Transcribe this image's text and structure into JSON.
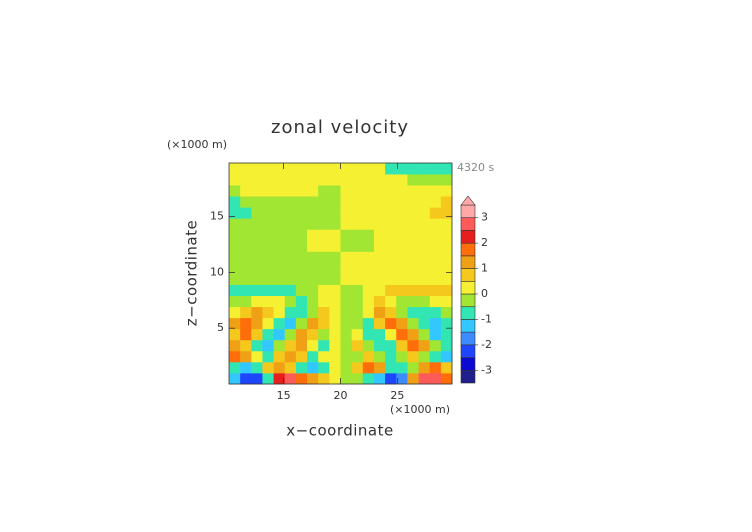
{
  "chart_data": {
    "type": "contourf",
    "title": "zonal velocity",
    "x_unit": "(×1000 m)",
    "y_unit": "(×1000 m)",
    "time_label": "4320 s",
    "xlabel": "x−coordinate",
    "ylabel": "z−coordinate",
    "xlim": [
      10.2,
      29.8
    ],
    "ylim": [
      0,
      19.8
    ],
    "xticks": [
      15,
      20,
      25
    ],
    "yticks": [
      5,
      10,
      15
    ],
    "levels": [
      -3,
      -2.5,
      -2,
      -1.5,
      -1,
      -0.5,
      0,
      0.5,
      1,
      1.5,
      2,
      2.5,
      3
    ],
    "colors": [
      "#1e1e8c",
      "#0a0ad2",
      "#1e46ff",
      "#3c8cff",
      "#32c8ff",
      "#32e6b4",
      "#a0e632",
      "#f5f032",
      "#f5c81e",
      "#f0a014",
      "#ff6e0a",
      "#e61e1e",
      "#ff5a5a",
      "#ffa8a8"
    ],
    "colorbar_lim": [
      -3.5,
      3.5
    ],
    "colorbar_ticks": [
      -3,
      -2,
      -1,
      0,
      1,
      2,
      3
    ],
    "z": [
      [
        -1.5,
        -2.5,
        -2.5,
        -1,
        2,
        2.5,
        1.5,
        1,
        0.5,
        0.25,
        -0.25,
        -0.5,
        -1,
        -1.5,
        -2.5,
        -2,
        1,
        2.5,
        2.5,
        1.5
      ],
      [
        -0.75,
        -1.5,
        -1,
        0.5,
        1,
        0.75,
        -1,
        -1.5,
        -0.75,
        0.25,
        -0.25,
        0.75,
        1.5,
        1,
        -0.75,
        -1,
        -0.5,
        1,
        1.5,
        0.75
      ],
      [
        1.5,
        1,
        0.25,
        -0.75,
        0.5,
        1,
        0.5,
        -0.75,
        0.25,
        0.25,
        -0.25,
        -0.25,
        0.75,
        -0.5,
        -1,
        -0.5,
        0.75,
        -0.25,
        -1,
        -1.5
      ],
      [
        1,
        0.5,
        -1,
        -1.5,
        -0.5,
        0.75,
        1,
        0.25,
        -0.75,
        0.25,
        -0.25,
        0.75,
        -0.25,
        -1,
        -0.75,
        0.5,
        1.5,
        1,
        -0.5,
        -1
      ],
      [
        0.75,
        1.5,
        0.5,
        -1,
        -1.5,
        -0.25,
        1,
        0.75,
        -0.25,
        0.25,
        -0.25,
        0.25,
        -0.75,
        -1,
        0.25,
        1.5,
        1,
        -0.5,
        -1.5,
        -0.75
      ],
      [
        1,
        1.5,
        1,
        0.25,
        -1,
        -1.5,
        -0.5,
        1,
        0.5,
        0.25,
        -0.25,
        -0.5,
        -1,
        0.5,
        1.5,
        1,
        -0.25,
        -1,
        -1.5,
        -1
      ],
      [
        0.25,
        0.75,
        1,
        0.75,
        0.25,
        -0.75,
        -1,
        -0.25,
        0.5,
        0.25,
        -0.25,
        -0.5,
        0.25,
        1,
        0.75,
        -0.25,
        -0.75,
        -1,
        -0.75,
        -0.25
      ],
      [
        -0.25,
        -0.25,
        0.25,
        0.25,
        0.25,
        -0.25,
        -0.75,
        -0.25,
        0.25,
        0.25,
        -0.25,
        -0.25,
        0.25,
        0.75,
        0.25,
        -0.25,
        -0.25,
        -0.25,
        0.25,
        0.25
      ],
      [
        -0.75,
        -0.75,
        -0.75,
        -0.75,
        -0.75,
        -0.75,
        -0.25,
        -0.25,
        0.25,
        0.25,
        -0.25,
        -0.25,
        0.25,
        0.25,
        0.75,
        0.75,
        0.75,
        0.75,
        0.75,
        0.75
      ],
      [
        -0.25,
        -0.25,
        -0.25,
        -0.25,
        -0.25,
        -0.25,
        -0.25,
        -0.25,
        -0.25,
        -0.25,
        0.25,
        0.25,
        0.25,
        0.25,
        0.25,
        0.25,
        0.25,
        0.25,
        0.25,
        0.25
      ],
      [
        -0.25,
        -0.25,
        -0.25,
        -0.25,
        -0.25,
        -0.25,
        -0.25,
        -0.25,
        -0.25,
        -0.25,
        0.25,
        0.25,
        0.25,
        0.25,
        0.25,
        0.25,
        0.25,
        0.25,
        0.25,
        0.25
      ],
      [
        -0.25,
        -0.25,
        -0.25,
        -0.25,
        -0.25,
        -0.25,
        -0.25,
        -0.25,
        -0.25,
        -0.25,
        0.25,
        0.25,
        0.25,
        0.25,
        0.25,
        0.25,
        0.25,
        0.25,
        0.25,
        0.25
      ],
      [
        -0.25,
        -0.25,
        -0.25,
        -0.25,
        -0.25,
        -0.25,
        -0.25,
        0.25,
        0.25,
        0.25,
        -0.25,
        -0.25,
        -0.25,
        0.25,
        0.25,
        0.25,
        0.25,
        0.25,
        0.25,
        0.25
      ],
      [
        -0.25,
        -0.25,
        -0.25,
        -0.25,
        -0.25,
        -0.25,
        -0.25,
        0.25,
        0.25,
        0.25,
        -0.25,
        -0.25,
        -0.25,
        0.25,
        0.25,
        0.25,
        0.25,
        0.25,
        0.25,
        0.25
      ],
      [
        -0.25,
        -0.25,
        -0.25,
        -0.25,
        -0.25,
        -0.25,
        -0.25,
        -0.25,
        -0.25,
        -0.25,
        0.25,
        0.25,
        0.25,
        0.25,
        0.25,
        0.25,
        0.25,
        0.25,
        0.25,
        0.25
      ],
      [
        -0.75,
        -0.75,
        -0.25,
        -0.25,
        -0.25,
        -0.25,
        -0.25,
        -0.25,
        -0.25,
        -0.25,
        0.25,
        0.25,
        0.25,
        0.25,
        0.25,
        0.25,
        0.25,
        0.25,
        0.75,
        0.75
      ],
      [
        -0.75,
        -0.25,
        -0.25,
        -0.25,
        -0.25,
        -0.25,
        -0.25,
        -0.25,
        -0.25,
        -0.25,
        0.25,
        0.25,
        0.25,
        0.25,
        0.25,
        0.25,
        0.25,
        0.25,
        0.25,
        0.75
      ],
      [
        -0.25,
        0.25,
        0.25,
        0.25,
        0.25,
        0.25,
        0.25,
        0.25,
        -0.25,
        -0.25,
        0.25,
        0.25,
        0.25,
        0.25,
        0.25,
        0.25,
        0.25,
        0.25,
        0.25,
        0.25
      ],
      [
        0.25,
        0.25,
        0.25,
        0.25,
        0.25,
        0.25,
        0.25,
        0.25,
        0.25,
        0.25,
        0.25,
        0.25,
        0.25,
        0.25,
        0.25,
        0.25,
        -0.25,
        -0.25,
        -0.25,
        -0.25
      ],
      [
        0.25,
        0.25,
        0.25,
        0.25,
        0.25,
        0.25,
        0.25,
        0.25,
        0.25,
        0.25,
        0.25,
        0.25,
        0.25,
        0.25,
        -0.75,
        -0.75,
        -0.75,
        -0.75,
        -0.75,
        -0.75
      ]
    ]
  }
}
